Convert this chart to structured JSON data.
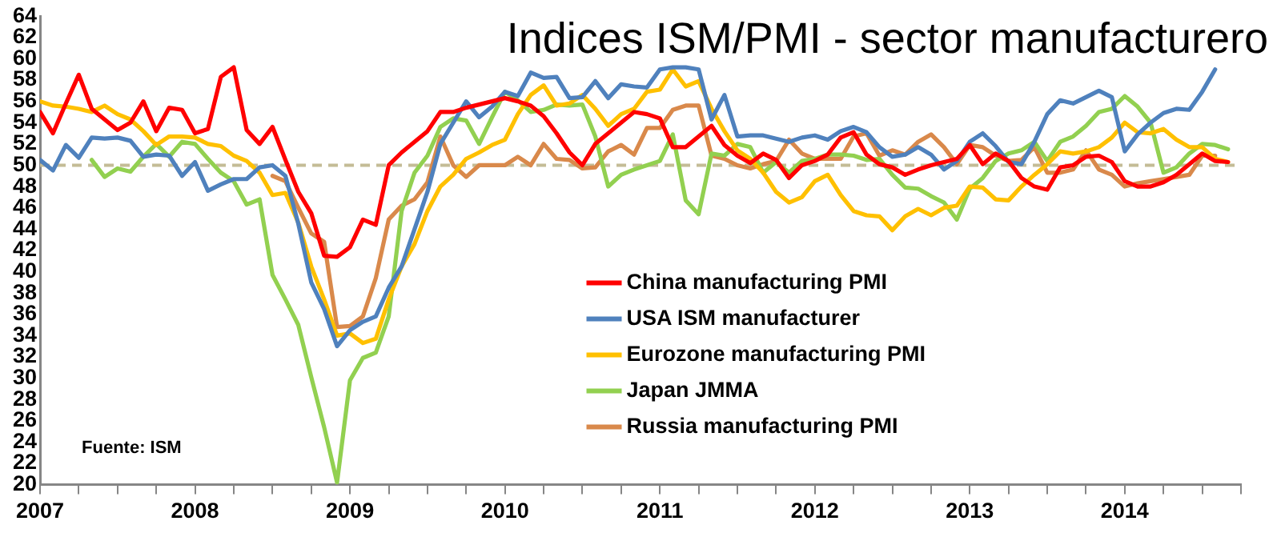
{
  "chart_data": {
    "type": "line",
    "title": "Indices ISM/PMI - sector manufacturero",
    "annotations": [
      "Fuente: ISM"
    ],
    "x": [
      "2007-01",
      "2007-02",
      "2007-03",
      "2007-04",
      "2007-05",
      "2007-06",
      "2007-07",
      "2007-08",
      "2007-09",
      "2007-10",
      "2007-11",
      "2007-12",
      "2008-01",
      "2008-02",
      "2008-03",
      "2008-04",
      "2008-05",
      "2008-06",
      "2008-07",
      "2008-08",
      "2008-09",
      "2008-10",
      "2008-11",
      "2008-12",
      "2009-01",
      "2009-02",
      "2009-03",
      "2009-04",
      "2009-05",
      "2009-06",
      "2009-07",
      "2009-08",
      "2009-09",
      "2009-10",
      "2009-11",
      "2009-12",
      "2010-01",
      "2010-02",
      "2010-03",
      "2010-04",
      "2010-05",
      "2010-06",
      "2010-07",
      "2010-08",
      "2010-09",
      "2010-10",
      "2010-11",
      "2010-12",
      "2011-01",
      "2011-02",
      "2011-03",
      "2011-04",
      "2011-05",
      "2011-06",
      "2011-07",
      "2011-08",
      "2011-09",
      "2011-10",
      "2011-11",
      "2011-12",
      "2012-01",
      "2012-02",
      "2012-03",
      "2012-04",
      "2012-05",
      "2012-06",
      "2012-07",
      "2012-08",
      "2012-09",
      "2012-10",
      "2012-11",
      "2012-12",
      "2013-01",
      "2013-02",
      "2013-03",
      "2013-04",
      "2013-05",
      "2013-06",
      "2013-07",
      "2013-08",
      "2013-09",
      "2013-10",
      "2013-11",
      "2013-12",
      "2014-01",
      "2014-02",
      "2014-03",
      "2014-04",
      "2014-05",
      "2014-06",
      "2014-07",
      "2014-08",
      "2014-09"
    ],
    "series": [
      {
        "name": "China manufacturing PMI",
        "color": "#ff0000",
        "values": [
          55.0,
          53.0,
          55.8,
          58.5,
          55.3,
          54.3,
          53.3,
          54.0,
          56.0,
          53.2,
          55.4,
          55.2,
          53.0,
          53.4,
          58.3,
          59.2,
          53.3,
          52.0,
          53.6,
          50.5,
          47.5,
          45.5,
          41.5,
          41.4,
          42.3,
          44.9,
          44.4,
          50.0,
          51.2,
          52.2,
          53.2,
          55.0,
          55.0,
          55.4,
          55.7,
          56.0,
          56.3,
          56.0,
          55.6,
          54.6,
          53.0,
          51.2,
          50.0,
          52.0,
          53.0,
          54.0,
          55.0,
          54.8,
          54.4,
          51.7,
          51.7,
          52.7,
          53.7,
          51.9,
          50.9,
          50.2,
          51.1,
          50.5,
          48.8,
          50.0,
          50.4,
          51.0,
          52.6,
          53.1,
          51.0,
          50.1,
          49.8,
          49.1,
          49.6,
          50.0,
          50.3,
          50.6,
          51.9,
          50.1,
          51.1,
          50.4,
          48.8,
          48.0,
          47.7,
          49.8,
          50.0,
          50.8,
          50.9,
          50.3,
          48.5,
          48.0,
          48.0,
          48.4,
          49.1,
          50.1,
          51.1,
          50.4,
          50.3
        ]
      },
      {
        "name": "USA ISM manufacturer",
        "color": "#4f81bd",
        "values": [
          50.5,
          49.5,
          51.9,
          50.7,
          52.6,
          52.5,
          52.6,
          52.3,
          50.8,
          51.0,
          50.9,
          49.0,
          50.3,
          47.6,
          48.2,
          48.7,
          48.7,
          49.8,
          50.0,
          49.0,
          44.5,
          39.0,
          36.5,
          33.0,
          34.5,
          35.3,
          35.8,
          38.5,
          40.5,
          44.0,
          47.5,
          52.0,
          54.0,
          56.0,
          54.5,
          55.5,
          56.9,
          56.5,
          58.7,
          58.2,
          58.3,
          56.3,
          56.4,
          57.9,
          56.3,
          57.6,
          57.4,
          57.3,
          59.0,
          59.2,
          59.2,
          59.0,
          54.3,
          56.6,
          52.7,
          52.8,
          52.8,
          52.5,
          52.2,
          52.6,
          52.8,
          52.4,
          53.2,
          53.6,
          53.1,
          51.7,
          50.8,
          51.0,
          51.7,
          51.0,
          49.6,
          50.4,
          52.2,
          53.0,
          51.8,
          50.3,
          50.1,
          52.2,
          54.8,
          56.1,
          55.8,
          56.4,
          57.0,
          56.4,
          51.3,
          52.9,
          54.0,
          54.9,
          55.3,
          55.2,
          56.9,
          59.0,
          null
        ]
      },
      {
        "name": "Eurozone manufacturing PMI",
        "color": "#ffc000",
        "values": [
          56.0,
          55.6,
          55.5,
          55.3,
          55.0,
          55.6,
          54.8,
          54.3,
          53.2,
          51.9,
          52.7,
          52.7,
          52.6,
          52.0,
          51.8,
          50.9,
          50.4,
          49.3,
          47.2,
          47.4,
          44.6,
          40.5,
          37.4,
          34.0,
          34.2,
          33.3,
          33.7,
          37.4,
          40.5,
          42.6,
          45.7,
          48.0,
          49.1,
          50.6,
          51.2,
          51.9,
          52.4,
          54.8,
          56.6,
          57.5,
          55.6,
          55.8,
          56.6,
          55.3,
          53.7,
          54.8,
          55.3,
          56.9,
          57.1,
          59.0,
          57.4,
          57.9,
          55.3,
          53.2,
          51.4,
          50.6,
          49.3,
          47.5,
          46.5,
          47.0,
          48.5,
          49.1,
          47.2,
          45.7,
          45.3,
          45.2,
          43.9,
          45.2,
          45.9,
          45.3,
          46.0,
          46.2,
          48.0,
          47.9,
          46.8,
          46.7,
          48.0,
          49.1,
          50.1,
          51.3,
          51.1,
          51.3,
          51.7,
          52.6,
          54.0,
          53.1,
          53.0,
          53.4,
          52.4,
          51.7,
          51.7,
          50.6,
          50.3
        ]
      },
      {
        "name": "Japan JMMA",
        "color": "#92d050",
        "values": [
          null,
          null,
          null,
          null,
          50.5,
          48.9,
          49.7,
          49.4,
          50.8,
          52.0,
          50.8,
          52.2,
          52.0,
          50.6,
          49.3,
          48.5,
          46.3,
          46.8,
          39.7,
          37.4,
          35.0,
          30.1,
          25.4,
          20.2,
          29.8,
          31.9,
          32.4,
          35.8,
          45.7,
          49.3,
          50.9,
          53.6,
          54.4,
          54.2,
          52.0,
          54.5,
          56.9,
          56.1,
          55.0,
          55.2,
          55.7,
          55.6,
          55.7,
          52.7,
          48.0,
          49.1,
          49.6,
          50.0,
          50.4,
          52.9,
          46.7,
          45.4,
          51.1,
          50.9,
          52.0,
          51.7,
          49.3,
          50.3,
          49.3,
          50.4,
          50.6,
          51.0,
          51.0,
          50.9,
          50.5,
          50.6,
          49.1,
          47.9,
          47.8,
          47.1,
          46.5,
          44.9,
          47.8,
          48.8,
          50.4,
          51.1,
          51.4,
          52.2,
          50.4,
          52.2,
          52.7,
          53.7,
          55.0,
          55.3,
          56.5,
          55.5,
          54.0,
          49.3,
          49.8,
          51.1,
          52.0,
          51.9,
          51.5
        ]
      },
      {
        "name": "Russia manufacturing PMI",
        "color": "#d9894b",
        "values": [
          null,
          null,
          null,
          null,
          null,
          null,
          null,
          null,
          null,
          null,
          null,
          null,
          null,
          null,
          null,
          null,
          null,
          null,
          49.0,
          48.5,
          46.0,
          43.6,
          42.8,
          34.8,
          34.9,
          35.8,
          39.4,
          44.9,
          46.2,
          46.8,
          48.4,
          52.7,
          50.0,
          48.9,
          50.0,
          50.0,
          50.0,
          50.8,
          50.0,
          52.0,
          50.6,
          50.5,
          49.7,
          49.8,
          51.3,
          51.9,
          51.0,
          53.5,
          53.5,
          55.2,
          55.6,
          55.6,
          50.9,
          50.6,
          50.0,
          49.7,
          50.1,
          50.4,
          52.4,
          51.1,
          50.6,
          50.6,
          50.6,
          52.7,
          53.0,
          50.9,
          51.4,
          51.0,
          52.2,
          52.9,
          51.7,
          50.1,
          51.9,
          51.7,
          50.9,
          50.4,
          50.5,
          51.7,
          49.3,
          49.3,
          49.6,
          51.4,
          49.6,
          49.1,
          48.0,
          48.3,
          48.5,
          48.7,
          48.9,
          49.1,
          50.9,
          50.9,
          null
        ]
      }
    ],
    "xlim": [
      "2007-01",
      "2014-10"
    ],
    "xticks": [
      "2007",
      {
        "value": "2007-04",
        "label": null
      },
      {
        "value": "2007-07",
        "label": null
      },
      {
        "value": "2007-10",
        "label": null
      },
      "2008",
      {
        "value": "2008-04",
        "label": null
      },
      {
        "value": "2008-07",
        "label": null
      },
      {
        "value": "2008-10",
        "label": null
      },
      "2009",
      {
        "value": "2009-04",
        "label": null
      },
      {
        "value": "2009-07",
        "label": null
      },
      {
        "value": "2009-10",
        "label": null
      },
      "2010",
      {
        "value": "2010-04",
        "label": null
      },
      {
        "value": "2010-07",
        "label": null
      },
      {
        "value": "2010-10",
        "label": null
      },
      "2011",
      {
        "value": "2011-04",
        "label": null
      },
      {
        "value": "2011-07",
        "label": null
      },
      {
        "value": "2011-10",
        "label": null
      },
      "2012",
      {
        "value": "2012-04",
        "label": null
      },
      {
        "value": "2012-07",
        "label": null
      },
      {
        "value": "2012-10",
        "label": null
      },
      "2013",
      {
        "value": "2013-04",
        "label": null
      },
      {
        "value": "2013-07",
        "label": null
      },
      {
        "value": "2013-10",
        "label": null
      },
      "2014",
      {
        "value": "2014-04",
        "label": null
      },
      {
        "value": "2014-07",
        "label": null
      },
      {
        "value": "2014-10",
        "label": null
      }
    ],
    "ylim": [
      20,
      64
    ],
    "yticks": [
      20,
      22,
      24,
      26,
      28,
      30,
      32,
      34,
      36,
      38,
      40,
      42,
      44,
      46,
      48,
      50,
      52,
      54,
      56,
      58,
      60,
      62,
      64
    ],
    "ref_lines": [
      {
        "axis": "y",
        "value": 50,
        "color": "#c4bc96",
        "line_style": "dashed"
      }
    ],
    "grid": false,
    "legend": "bottom"
  }
}
